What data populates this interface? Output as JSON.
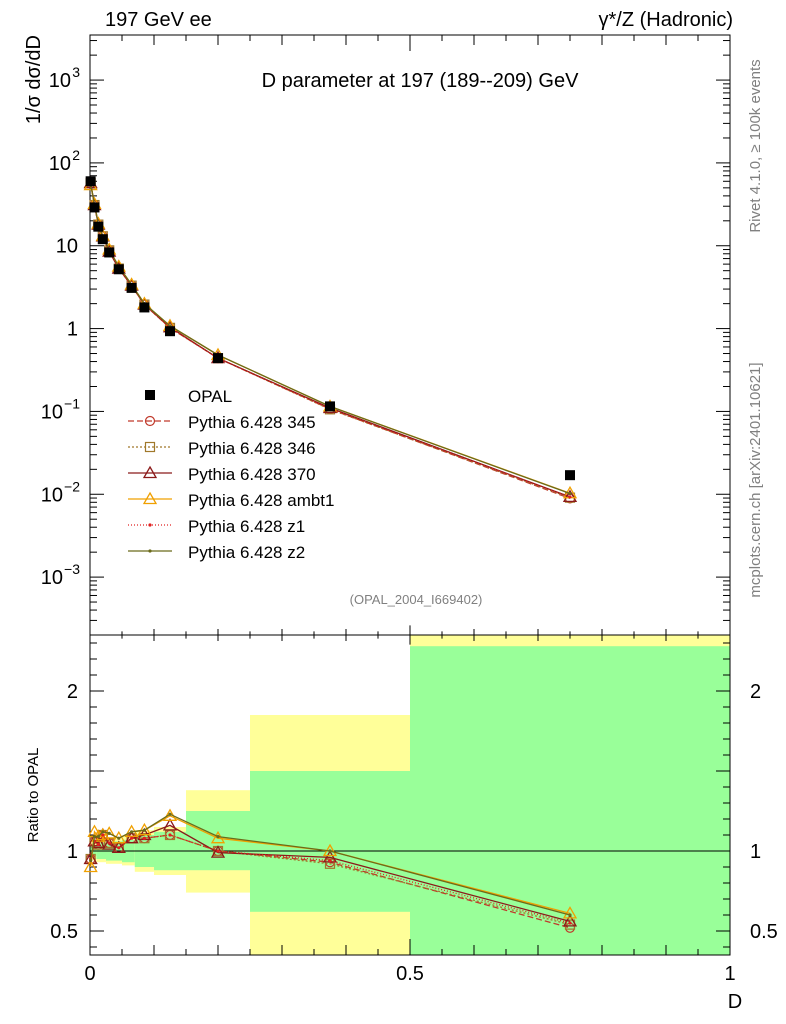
{
  "header": {
    "left_title": "197 GeV ee",
    "right_title": "γ*/Z (Hadronic)",
    "plot_title": "D parameter at 197 (189--209) GeV",
    "analysis_id": "(OPAL_2004_I669402)",
    "side_rivet": "Rivet 4.1.0, ≥ 100k events",
    "side_mcplots": "mcplots.cern.ch [arXiv:2401.10621]"
  },
  "chart_data": [
    {
      "type": "line",
      "name": "main",
      "ylabel": "1/σ  dσ/dD",
      "yscale": "log",
      "ylim": [
        0.0002,
        3500
      ],
      "xlim": [
        0,
        1
      ],
      "ytick_labels": [
        {
          "value": 0.001,
          "mant": "10",
          "exp": "−3"
        },
        {
          "value": 0.01,
          "mant": "10",
          "exp": "−2"
        },
        {
          "value": 0.1,
          "mant": "10",
          "exp": "−1"
        },
        {
          "value": 1,
          "mant": "1",
          "exp": ""
        },
        {
          "value": 10,
          "mant": "10",
          "exp": ""
        },
        {
          "value": 100,
          "mant": "10",
          "exp": "2"
        },
        {
          "value": 1000,
          "mant": "10",
          "exp": "3"
        }
      ],
      "x": [
        0.001,
        0.007,
        0.013,
        0.02,
        0.03,
        0.045,
        0.065,
        0.085,
        0.125,
        0.2,
        0.375,
        0.75
      ],
      "data": {
        "name": "OPAL",
        "values": [
          60,
          29,
          17,
          12,
          8.3,
          5.2,
          3.1,
          1.8,
          0.93,
          0.44,
          0.115,
          0.017
        ]
      },
      "series": [
        {
          "name": "Pythia 6.428 345",
          "color": "#c0392b",
          "marker": "circle",
          "dash": "6,3",
          "values": [
            57,
            31,
            18,
            13,
            8.8,
            5.3,
            3.3,
            1.95,
            1.02,
            0.44,
            0.107,
            0.0089
          ]
        },
        {
          "name": "Pythia 6.428 346",
          "color": "#a0782a",
          "marker": "square",
          "dash": "2,2",
          "values": [
            57,
            31,
            18,
            13,
            8.8,
            5.3,
            3.3,
            1.95,
            1.02,
            0.44,
            0.106,
            0.0091
          ]
        },
        {
          "name": "Pythia 6.428 370",
          "color": "#8b1a1a",
          "marker": "triangle",
          "dash": "",
          "values": [
            57,
            31,
            18,
            13,
            8.5,
            5.3,
            3.3,
            1.95,
            1.04,
            0.44,
            0.11,
            0.0093
          ]
        },
        {
          "name": "Pythia 6.428 ambt1",
          "color": "#f0a000",
          "marker": "triangle",
          "dash": "",
          "values": [
            54,
            32,
            18.5,
            13.2,
            9.0,
            5.6,
            3.4,
            2.0,
            1.08,
            0.48,
            0.115,
            0.0103
          ]
        },
        {
          "name": "Pythia 6.428 z1",
          "color": "#e02020",
          "marker": "dot",
          "dash": "1,2",
          "values": [
            57,
            31,
            18,
            13,
            8.8,
            5.3,
            3.3,
            1.95,
            1.02,
            0.44,
            0.107,
            0.0093
          ]
        },
        {
          "name": "Pythia 6.428 z2",
          "color": "#6b6b1a",
          "marker": "dot",
          "dash": "",
          "values": [
            56,
            31.5,
            18.5,
            13,
            9.0,
            5.6,
            3.4,
            2.0,
            1.08,
            0.48,
            0.115,
            0.0102
          ]
        }
      ]
    },
    {
      "type": "line",
      "name": "ratio",
      "ylabel": "Ratio to OPAL",
      "xlabel": "D",
      "ylim": [
        0.35,
        2.35
      ],
      "xlim": [
        0,
        1
      ],
      "ytick_labels": [
        {
          "value": 0.5,
          "text": "0.5"
        },
        {
          "value": 1,
          "text": "1"
        },
        {
          "value": 2,
          "text": "2"
        }
      ],
      "xtick_labels": [
        {
          "value": 0,
          "text": "0"
        },
        {
          "value": 0.5,
          "text": "0.5"
        },
        {
          "value": 1,
          "text": "1"
        }
      ],
      "bands": [
        {
          "x0": 0.0,
          "x1": 0.01,
          "g0": 0.97,
          "g1": 1.03,
          "y0": 0.94,
          "y1": 1.06
        },
        {
          "x0": 0.01,
          "x1": 0.025,
          "g0": 0.95,
          "g1": 1.05,
          "y0": 0.93,
          "y1": 1.07
        },
        {
          "x0": 0.025,
          "x1": 0.05,
          "g0": 0.94,
          "g1": 1.06,
          "y0": 0.92,
          "y1": 1.08
        },
        {
          "x0": 0.05,
          "x1": 0.07,
          "g0": 0.93,
          "g1": 1.07,
          "y0": 0.91,
          "y1": 1.09
        },
        {
          "x0": 0.07,
          "x1": 0.1,
          "g0": 0.9,
          "g1": 1.1,
          "y0": 0.87,
          "y1": 1.13
        },
        {
          "x0": 0.1,
          "x1": 0.15,
          "g0": 0.88,
          "g1": 1.12,
          "y0": 0.85,
          "y1": 1.15
        },
        {
          "x0": 0.15,
          "x1": 0.25,
          "g0": 0.88,
          "g1": 1.25,
          "y0": 0.74,
          "y1": 1.38
        },
        {
          "x0": 0.25,
          "x1": 0.5,
          "g0": 0.62,
          "g1": 1.5,
          "y0": 0.35,
          "y1": 1.85
        },
        {
          "x0": 0.5,
          "x1": 1.0,
          "g0": 0.35,
          "g1": 2.28,
          "y0": 0.35,
          "y1": 2.35
        }
      ],
      "series": [
        {
          "name": "Pythia 6.428 345",
          "color": "#c0392b",
          "marker": "circle",
          "dash": "6,3",
          "values": [
            0.95,
            1.06,
            1.04,
            1.1,
            1.05,
            1.02,
            1.08,
            1.08,
            1.1,
            1.0,
            0.93,
            0.52
          ]
        },
        {
          "name": "Pythia 6.428 346",
          "color": "#a0782a",
          "marker": "square",
          "dash": "2,2",
          "values": [
            0.95,
            1.06,
            1.04,
            1.1,
            1.05,
            1.02,
            1.08,
            1.08,
            1.1,
            1.0,
            0.92,
            0.54
          ]
        },
        {
          "name": "Pythia 6.428 370",
          "color": "#8b1a1a",
          "marker": "triangle",
          "dash": "",
          "values": [
            0.95,
            1.06,
            1.05,
            1.1,
            1.04,
            1.02,
            1.08,
            1.1,
            1.16,
            0.99,
            0.96,
            0.56
          ]
        },
        {
          "name": "Pythia 6.428 ambt1",
          "color": "#f0a000",
          "marker": "triangle",
          "dash": "",
          "values": [
            0.9,
            1.12,
            1.09,
            1.1,
            1.11,
            1.08,
            1.12,
            1.13,
            1.22,
            1.08,
            1.0,
            0.61
          ]
        },
        {
          "name": "Pythia 6.428 z1",
          "color": "#e02020",
          "marker": "dot",
          "dash": "1,2",
          "values": [
            0.95,
            1.06,
            1.04,
            1.1,
            1.05,
            1.02,
            1.08,
            1.08,
            1.1,
            1.0,
            0.94,
            0.55
          ]
        },
        {
          "name": "Pythia 6.428 z2",
          "color": "#6b6b1a",
          "marker": "dot",
          "dash": "",
          "values": [
            0.94,
            1.09,
            1.09,
            1.12,
            1.11,
            1.08,
            1.12,
            1.13,
            1.23,
            1.09,
            1.0,
            0.6
          ]
        }
      ]
    }
  ],
  "colors": {
    "band_green": "#99ff99",
    "band_yellow": "#ffff99"
  }
}
